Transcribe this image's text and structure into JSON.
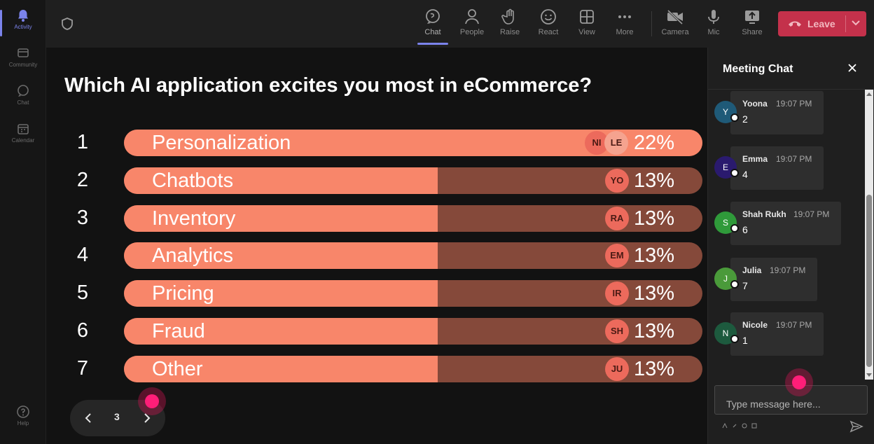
{
  "rail": {
    "items": [
      {
        "label": "Activity",
        "icon": "bell-icon"
      },
      {
        "label": "Community",
        "icon": "community-icon"
      },
      {
        "label": "Chat",
        "icon": "chat-icon"
      },
      {
        "label": "Calendar",
        "icon": "calendar-icon"
      },
      {
        "label": "Help",
        "icon": "help-icon"
      }
    ]
  },
  "toolbar": {
    "chat": "Chat",
    "people": "People",
    "raise": "Raise",
    "react": "React",
    "view": "View",
    "more": "More",
    "camera": "Camera",
    "mic": "Mic",
    "share": "Share",
    "leave": "Leave"
  },
  "poll": {
    "question": "Which AI application excites you most in eCommerce?",
    "options": [
      {
        "num": "1",
        "label": "Personalization",
        "percent": "22%",
        "value": 22,
        "avatars": [
          "NI",
          "LE"
        ]
      },
      {
        "num": "2",
        "label": "Chatbots",
        "percent": "13%",
        "value": 13,
        "avatars": [
          "YO"
        ]
      },
      {
        "num": "3",
        "label": "Inventory",
        "percent": "13%",
        "value": 13,
        "avatars": [
          "RA"
        ]
      },
      {
        "num": "4",
        "label": "Analytics",
        "percent": "13%",
        "value": 13,
        "avatars": [
          "EM"
        ]
      },
      {
        "num": "5",
        "label": "Pricing",
        "percent": "13%",
        "value": 13,
        "avatars": [
          "IR"
        ]
      },
      {
        "num": "6",
        "label": "Fraud",
        "percent": "13%",
        "value": 13,
        "avatars": [
          "SH"
        ]
      },
      {
        "num": "7",
        "label": "Other",
        "percent": "13%",
        "value": 13,
        "avatars": [
          "JU"
        ]
      }
    ],
    "colors": {
      "fill": "#f8866a",
      "track": "#85493a",
      "avatar": "#ec6a5c"
    }
  },
  "pager": {
    "page": "3"
  },
  "chat": {
    "title": "Meeting Chat",
    "messages": [
      {
        "initial": "Y",
        "name": "Yoona",
        "time": "19:07 PM",
        "text": "2",
        "color": "#1f5a78"
      },
      {
        "initial": "E",
        "name": "Emma",
        "time": "19:07 PM",
        "text": "4",
        "color": "#2a1a6e"
      },
      {
        "initial": "S",
        "name": "Shah Rukh",
        "time": "19:07 PM",
        "text": "6",
        "color": "#2f9a3a"
      },
      {
        "initial": "J",
        "name": "Julia",
        "time": "19:07 PM",
        "text": "7",
        "color": "#4a9a3a"
      },
      {
        "initial": "N",
        "name": "Nicole",
        "time": "19:07 PM",
        "text": "1",
        "color": "#1d5a3e"
      }
    ],
    "input_placeholder": "Type message here..."
  }
}
